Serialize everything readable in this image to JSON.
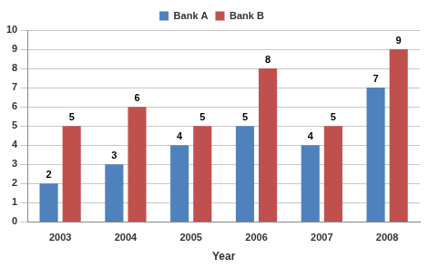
{
  "chart_data": {
    "type": "bar",
    "x_label": "Year",
    "categories": [
      "2003",
      "2004",
      "2005",
      "2006",
      "2007",
      "2008"
    ],
    "series": [
      {
        "name": "Bank A",
        "color": "#4f81bd",
        "values": [
          2,
          3,
          4,
          5,
          4,
          7
        ]
      },
      {
        "name": "Bank B",
        "color": "#c0504d",
        "values": [
          5,
          6,
          5,
          8,
          5,
          9
        ]
      }
    ],
    "ylim": [
      0,
      10
    ],
    "yticks": [
      0,
      1,
      2,
      3,
      4,
      5,
      6,
      7,
      8,
      9,
      10
    ],
    "grid": true,
    "legend": "top",
    "data_labels": true
  }
}
